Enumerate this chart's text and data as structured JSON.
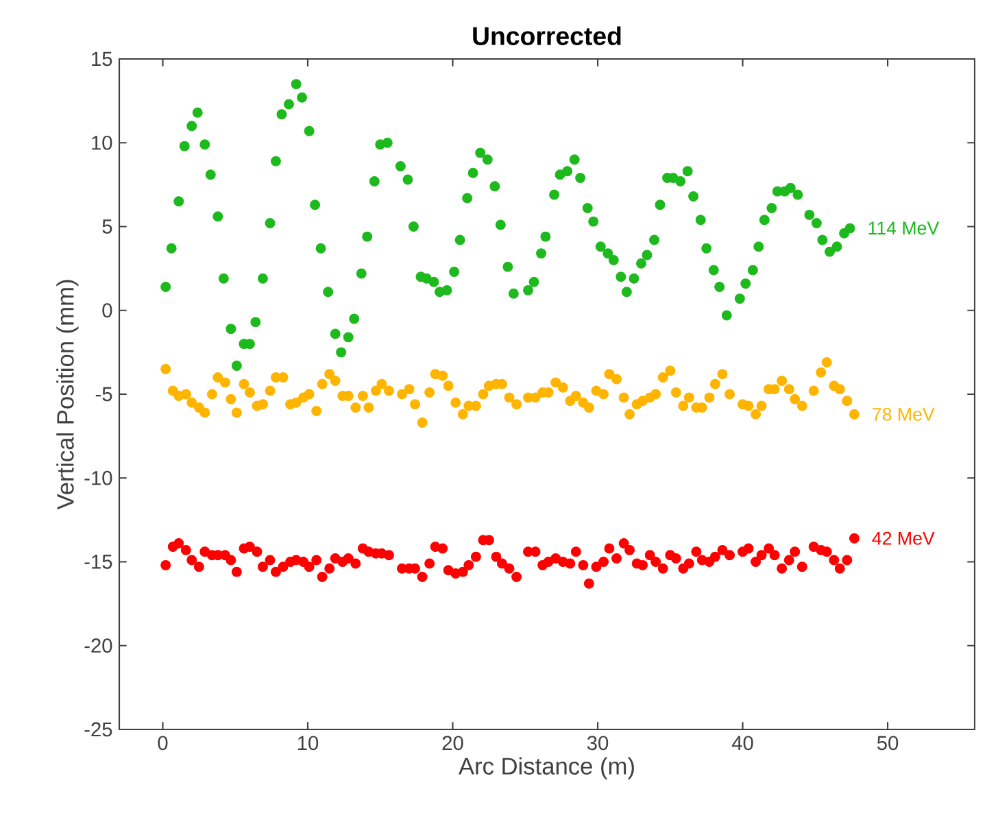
{
  "chart_data": {
    "type": "scatter",
    "title": "Uncorrected",
    "xlabel": "Arc Distance (m)",
    "ylabel": "Vertical Position (mm)",
    "xlim": [
      -3,
      56
    ],
    "ylim": [
      -25,
      15
    ],
    "xticks": [
      0,
      10,
      20,
      30,
      40,
      50
    ],
    "yticks": [
      -25,
      -20,
      -15,
      -10,
      -5,
      0,
      5,
      10,
      15
    ],
    "marker": "circle",
    "series": [
      {
        "name": "114 MeV",
        "color": "#1db91d",
        "x": [
          0.2,
          0.6,
          1.1,
          1.5,
          2.0,
          2.4,
          2.9,
          3.3,
          3.8,
          4.2,
          4.7,
          5.1,
          5.6,
          6.0,
          6.4,
          6.9,
          7.4,
          7.8,
          8.2,
          8.7,
          9.2,
          9.6,
          10.1,
          10.5,
          10.9,
          11.4,
          11.9,
          12.3,
          12.8,
          13.2,
          13.7,
          14.1,
          14.6,
          15.0,
          15.5,
          16.4,
          16.9,
          17.3,
          17.8,
          18.2,
          18.7,
          19.1,
          19.6,
          20.1,
          20.5,
          21.0,
          21.4,
          21.9,
          22.4,
          22.9,
          23.3,
          23.8,
          24.2,
          25.2,
          25.6,
          26.1,
          26.4,
          27.0,
          27.4,
          27.9,
          28.4,
          28.8,
          29.3,
          29.7,
          30.2,
          30.7,
          31.1,
          31.6,
          32.0,
          32.5,
          33.0,
          33.4,
          33.9,
          34.3,
          34.8,
          35.2,
          35.7,
          36.2,
          36.6,
          37.1,
          37.5,
          38.0,
          38.4,
          38.9,
          39.8,
          40.2,
          40.7,
          41.1,
          41.5,
          42.0,
          42.4,
          42.9,
          43.3,
          43.8,
          44.6,
          45.1,
          45.5,
          46.0,
          46.5,
          47.0,
          47.4
        ],
        "values": [
          1.4,
          3.7,
          6.5,
          9.8,
          11.0,
          11.8,
          9.9,
          8.1,
          5.6,
          1.9,
          -1.1,
          -3.3,
          -2.0,
          -2.0,
          -0.7,
          1.9,
          5.2,
          8.9,
          11.7,
          12.3,
          13.5,
          12.7,
          10.7,
          6.3,
          3.7,
          1.1,
          -1.4,
          -2.5,
          -1.6,
          -0.5,
          2.2,
          4.4,
          7.7,
          9.9,
          10.0,
          8.6,
          7.8,
          5.0,
          2.0,
          1.9,
          1.7,
          1.1,
          1.2,
          2.3,
          4.2,
          6.7,
          8.2,
          9.4,
          9.0,
          7.4,
          5.1,
          2.6,
          1.0,
          1.2,
          1.7,
          3.4,
          4.4,
          6.9,
          8.1,
          8.3,
          9.0,
          7.9,
          6.1,
          5.3,
          3.8,
          3.4,
          3.0,
          2.0,
          1.1,
          1.9,
          2.8,
          3.3,
          4.2,
          6.3,
          7.9,
          7.9,
          7.7,
          8.3,
          6.8,
          5.4,
          3.7,
          2.4,
          1.4,
          -0.3,
          0.7,
          1.6,
          2.4,
          3.8,
          5.4,
          6.1,
          7.1,
          7.1,
          7.3,
          6.9,
          5.7,
          5.2,
          4.2,
          3.5,
          3.8,
          4.6,
          4.9
        ]
      },
      {
        "name": "78 MeV",
        "color": "#ffb400",
        "x": [
          0.2,
          0.7,
          1.1,
          1.6,
          2.0,
          2.5,
          2.9,
          3.4,
          3.8,
          4.3,
          4.7,
          5.1,
          5.6,
          6.0,
          6.5,
          6.9,
          7.4,
          7.8,
          8.3,
          8.8,
          9.2,
          9.7,
          10.1,
          10.6,
          11.0,
          11.5,
          11.9,
          12.4,
          12.8,
          13.3,
          13.8,
          14.2,
          14.7,
          15.1,
          15.6,
          16.5,
          17.0,
          17.4,
          17.9,
          18.4,
          18.8,
          19.3,
          19.7,
          20.2,
          20.7,
          21.1,
          21.6,
          22.1,
          22.5,
          23.0,
          23.4,
          23.9,
          24.4,
          25.2,
          25.7,
          26.2,
          26.6,
          27.1,
          27.6,
          28.1,
          28.5,
          29.0,
          29.4,
          29.9,
          30.4,
          30.8,
          31.3,
          31.8,
          32.2,
          32.7,
          33.1,
          33.6,
          34.0,
          34.5,
          35.0,
          35.4,
          35.9,
          36.3,
          36.8,
          37.2,
          37.7,
          38.1,
          38.6,
          39.1,
          40.0,
          40.4,
          40.9,
          41.3,
          41.8,
          42.2,
          42.7,
          43.2,
          43.6,
          44.1,
          44.9,
          45.4,
          45.8,
          46.3,
          46.7,
          47.2,
          47.7
        ],
        "values": [
          -3.5,
          -4.8,
          -5.1,
          -5.0,
          -5.5,
          -5.8,
          -6.1,
          -5.0,
          -4.0,
          -4.3,
          -5.3,
          -6.1,
          -4.4,
          -4.9,
          -5.7,
          -5.6,
          -4.8,
          -4.0,
          -4.0,
          -5.6,
          -5.5,
          -5.2,
          -5.0,
          -6.0,
          -4.4,
          -3.8,
          -4.2,
          -5.1,
          -5.1,
          -5.8,
          -5.1,
          -5.8,
          -4.8,
          -4.4,
          -4.8,
          -5.0,
          -4.7,
          -5.6,
          -6.7,
          -4.9,
          -3.8,
          -3.9,
          -4.5,
          -5.5,
          -6.2,
          -5.7,
          -5.7,
          -5.0,
          -4.5,
          -4.4,
          -4.4,
          -5.2,
          -5.6,
          -5.2,
          -5.2,
          -4.9,
          -4.9,
          -4.3,
          -4.6,
          -5.4,
          -5.1,
          -5.5,
          -5.8,
          -4.8,
          -5.0,
          -3.8,
          -4.1,
          -5.2,
          -6.2,
          -5.6,
          -5.4,
          -5.2,
          -5.0,
          -4.0,
          -3.6,
          -4.9,
          -5.7,
          -5.2,
          -5.8,
          -5.8,
          -5.2,
          -4.4,
          -3.8,
          -5.0,
          -5.6,
          -5.7,
          -6.2,
          -5.7,
          -4.7,
          -4.7,
          -4.2,
          -4.7,
          -5.3,
          -5.7,
          -4.8,
          -3.7,
          -3.1,
          -4.5,
          -4.7,
          -5.4,
          -6.2
        ]
      },
      {
        "name": "42 MeV",
        "color": "#ff0000",
        "x": [
          0.2,
          0.7,
          1.1,
          1.6,
          2.0,
          2.5,
          2.9,
          3.4,
          3.8,
          4.3,
          4.7,
          5.1,
          5.6,
          6.0,
          6.5,
          6.9,
          7.4,
          7.8,
          8.3,
          8.8,
          9.2,
          9.7,
          10.1,
          10.6,
          11.0,
          11.5,
          11.9,
          12.4,
          12.8,
          13.3,
          13.8,
          14.2,
          14.7,
          15.1,
          15.6,
          16.5,
          17.0,
          17.4,
          17.9,
          18.4,
          18.8,
          19.3,
          19.7,
          20.2,
          20.7,
          21.1,
          21.6,
          22.1,
          22.5,
          23.0,
          23.4,
          23.9,
          24.4,
          25.2,
          25.7,
          26.2,
          26.6,
          27.1,
          27.6,
          28.1,
          28.5,
          29.0,
          29.4,
          29.9,
          30.4,
          30.8,
          31.3,
          31.8,
          32.2,
          32.7,
          33.1,
          33.6,
          34.0,
          34.5,
          35.0,
          35.4,
          35.9,
          36.3,
          36.8,
          37.2,
          37.7,
          38.1,
          38.6,
          39.1,
          40.0,
          40.4,
          40.9,
          41.3,
          41.8,
          42.2,
          42.7,
          43.2,
          43.6,
          44.1,
          44.9,
          45.4,
          45.8,
          46.3,
          46.7,
          47.2,
          47.7
        ],
        "values": [
          -15.2,
          -14.1,
          -13.9,
          -14.3,
          -14.9,
          -15.3,
          -14.4,
          -14.6,
          -14.6,
          -14.6,
          -14.9,
          -15.6,
          -14.2,
          -14.1,
          -14.4,
          -15.3,
          -14.9,
          -15.6,
          -15.3,
          -15.0,
          -14.9,
          -15.0,
          -15.3,
          -14.9,
          -15.9,
          -15.4,
          -14.8,
          -15.0,
          -14.8,
          -15.1,
          -14.2,
          -14.4,
          -14.5,
          -14.5,
          -14.6,
          -15.4,
          -15.4,
          -15.4,
          -15.9,
          -15.1,
          -14.1,
          -14.2,
          -15.5,
          -15.7,
          -15.6,
          -15.2,
          -14.7,
          -13.7,
          -13.7,
          -14.7,
          -15.1,
          -15.4,
          -15.9,
          -14.4,
          -14.4,
          -15.2,
          -15.0,
          -14.8,
          -15.0,
          -15.1,
          -14.4,
          -15.2,
          -16.3,
          -15.3,
          -15.0,
          -14.2,
          -14.8,
          -13.9,
          -14.3,
          -15.1,
          -15.2,
          -14.6,
          -15.0,
          -15.4,
          -14.6,
          -14.8,
          -15.4,
          -15.1,
          -14.4,
          -14.9,
          -15.0,
          -14.7,
          -14.3,
          -14.6,
          -14.4,
          -14.2,
          -15.0,
          -14.6,
          -14.2,
          -14.6,
          -15.4,
          -14.9,
          -14.4,
          -15.3,
          -14.1,
          -14.3,
          -14.4,
          -14.9,
          -15.4,
          -14.9,
          -13.6
        ]
      }
    ]
  }
}
